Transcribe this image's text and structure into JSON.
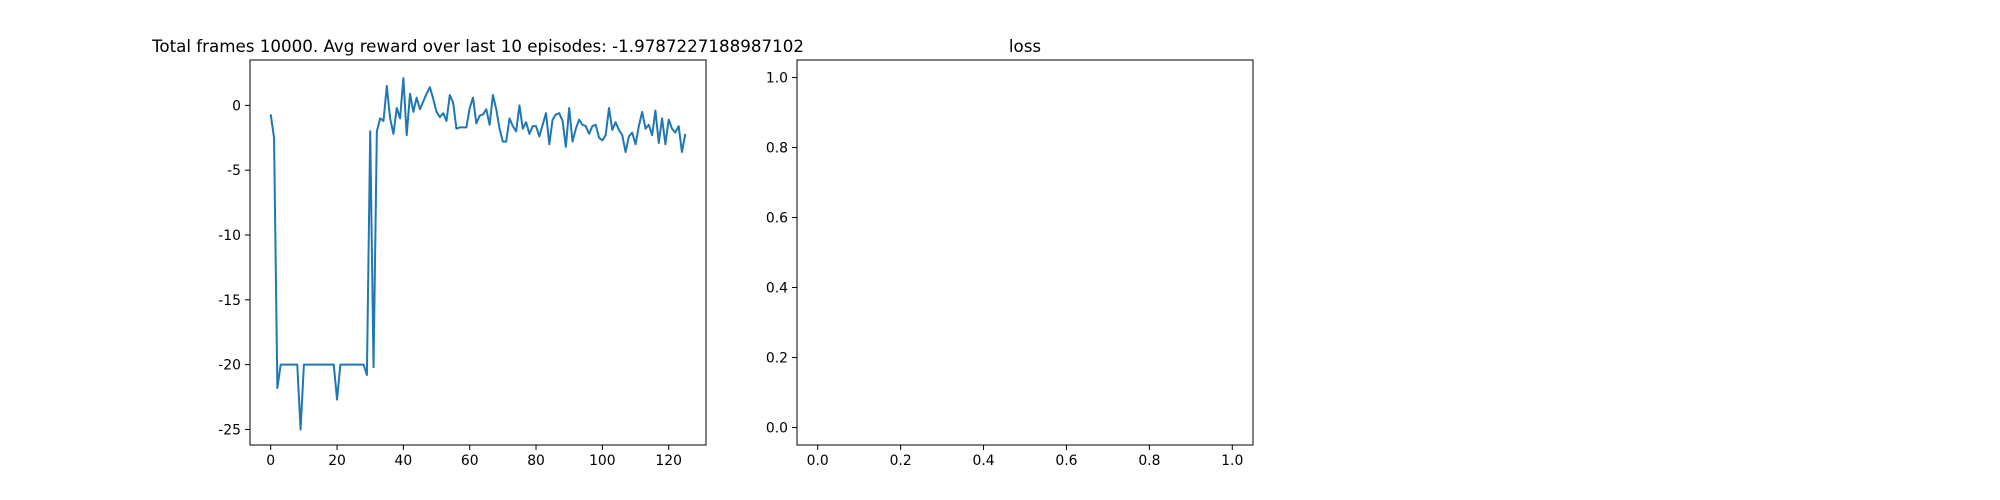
{
  "chart_data": [
    {
      "type": "line",
      "title": "Total frames 10000. Avg reward over last 10 episodes: -1.9787227188987102",
      "x": [
        0,
        1,
        2,
        3,
        4,
        5,
        6,
        7,
        8,
        9,
        10,
        11,
        12,
        13,
        14,
        15,
        16,
        17,
        18,
        19,
        20,
        21,
        22,
        23,
        24,
        25,
        26,
        27,
        28,
        29,
        30,
        31,
        32,
        33,
        34,
        35,
        36,
        37,
        38,
        39,
        40,
        41,
        42,
        43,
        44,
        45,
        46,
        47,
        48,
        49,
        50,
        51,
        52,
        53,
        54,
        55,
        56,
        57,
        58,
        59,
        60,
        61,
        62,
        63,
        64,
        65,
        66,
        67,
        68,
        69,
        70,
        71,
        72,
        73,
        74,
        75,
        76,
        77,
        78,
        79,
        80,
        81,
        82,
        83,
        84,
        85,
        86,
        87,
        88,
        89,
        90,
        91,
        92,
        93,
        94,
        95,
        96,
        97,
        98,
        99,
        100,
        101,
        102,
        103,
        104,
        105,
        106,
        107,
        108,
        109,
        110,
        111,
        112,
        113,
        114,
        115,
        116,
        117,
        118,
        119,
        120,
        121,
        122,
        123,
        124,
        125
      ],
      "series": [
        {
          "color": "#1f77b4",
          "values": [
            -0.7,
            -2.5,
            -21.8,
            -20,
            -20,
            -20,
            -20,
            -20,
            -20,
            -25,
            -20,
            -20,
            -20,
            -20,
            -20,
            -20,
            -20,
            -20,
            -20,
            -20,
            -22.7,
            -20,
            -20,
            -20,
            -20,
            -20,
            -20,
            -20,
            -20,
            -20.8,
            -2,
            -20.2,
            -2,
            -1,
            -1.2,
            1.5,
            -1,
            -2.2,
            -0.2,
            -1,
            2.1,
            -2.3,
            0.9,
            -0.5,
            0.6,
            -0.3,
            0.3,
            0.9,
            1.4,
            0.5,
            -0.5,
            -0.9,
            -0.6,
            -1.2,
            0.8,
            0.2,
            -1.8,
            -1.7,
            -1.7,
            -1.7,
            -0.2,
            0.6,
            -1.4,
            -0.8,
            -0.7,
            -0.3,
            -1.5,
            0.8,
            -0.3,
            -1.8,
            -2.8,
            -2.8,
            -1,
            -1.6,
            -2,
            0,
            -1.8,
            -1.3,
            -2.2,
            -1.6,
            -1.6,
            -2.4,
            -1.5,
            -0.6,
            -3,
            -1.1,
            -0.7,
            -0.6,
            -1.2,
            -3.2,
            -0.2,
            -2.8,
            -1.8,
            -1.1,
            -1.5,
            -1.6,
            -2.2,
            -1.6,
            -1.5,
            -2.5,
            -2.7,
            -2.3,
            -0.2,
            -1.9,
            -1.3,
            -1.9,
            -2.3,
            -3.6,
            -2.4,
            -2.1,
            -3,
            -1.6,
            -0.5,
            -1.8,
            -1.5,
            -2.3,
            -0.4,
            -2.9,
            -1,
            -3,
            -1.1,
            -1.8,
            -2.1,
            -1.6,
            -3.6,
            -2.2
          ]
        }
      ],
      "xlim": [
        -6.25,
        131.25
      ],
      "xticks": [
        0,
        20,
        40,
        60,
        80,
        100,
        120
      ],
      "ylim": [
        -26.2,
        3.5
      ],
      "yticks": [
        -25,
        -20,
        -15,
        -10,
        -5,
        0
      ]
    },
    {
      "type": "line",
      "title": "loss",
      "series": [],
      "xlim": [
        -0.05,
        1.05
      ],
      "xticks": [
        {
          "value": 0,
          "label": "0.0"
        },
        {
          "value": 0.2,
          "label": "0.2"
        },
        {
          "value": 0.4,
          "label": "0.4"
        },
        {
          "value": 0.6,
          "label": "0.6"
        },
        {
          "value": 0.8,
          "label": "0.8"
        },
        {
          "value": 1,
          "label": "1.0"
        }
      ],
      "ylim": [
        -0.05,
        1.05
      ],
      "yticks": [
        {
          "value": 0,
          "label": "0.0"
        },
        {
          "value": 0.2,
          "label": "0.2"
        },
        {
          "value": 0.4,
          "label": "0.4"
        },
        {
          "value": 0.6,
          "label": "0.6"
        },
        {
          "value": 0.8,
          "label": "0.8"
        },
        {
          "value": 1,
          "label": "1.0"
        }
      ]
    }
  ]
}
